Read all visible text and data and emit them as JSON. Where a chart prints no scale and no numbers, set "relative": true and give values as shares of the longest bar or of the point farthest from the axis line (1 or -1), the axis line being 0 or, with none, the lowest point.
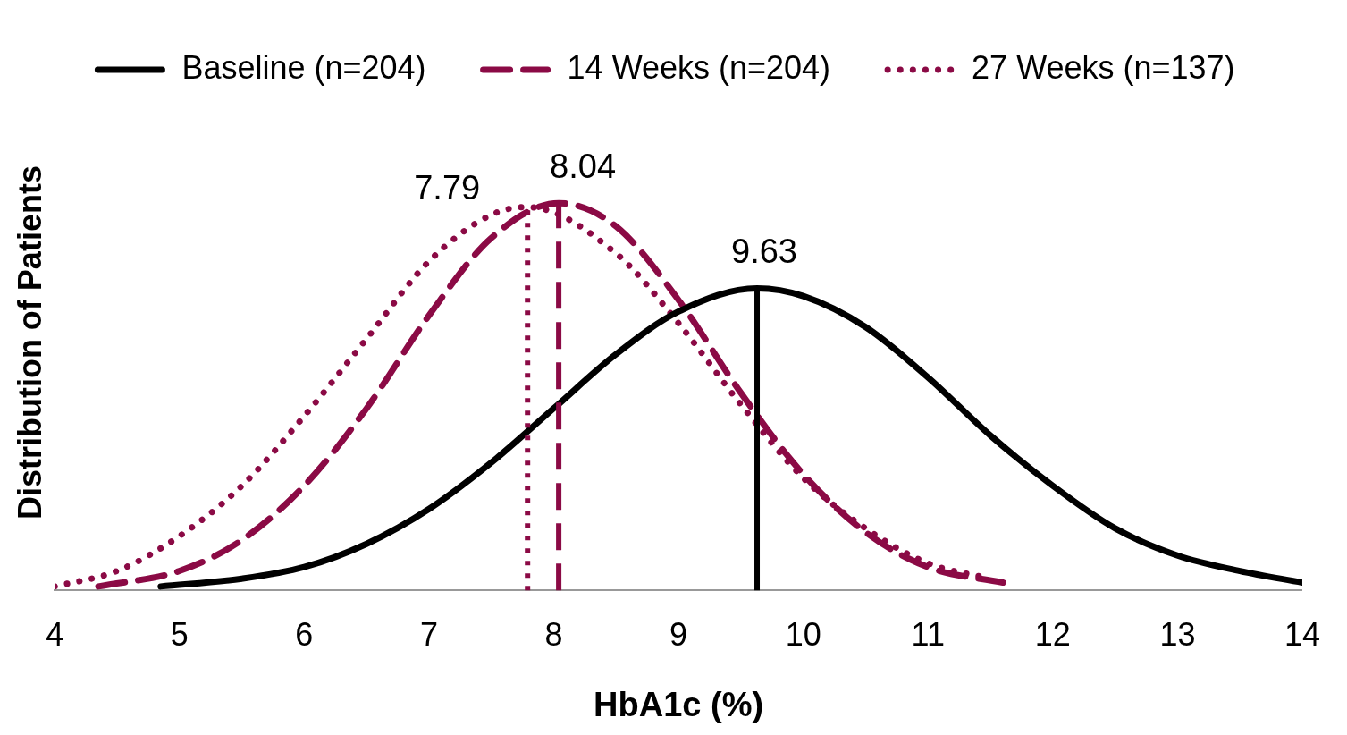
{
  "chart_data": {
    "type": "line",
    "relative": true,
    "xlabel": "HbA1c (%)",
    "ylabel": "Distribution of Patients",
    "xlim": [
      4,
      14
    ],
    "xticks": [
      4,
      5,
      6,
      7,
      8,
      9,
      10,
      11,
      12,
      13,
      14
    ],
    "grid": false,
    "legend": "top",
    "marker": "none",
    "tick_labels": "x",
    "series": [
      {
        "name": "Baseline (n=204)",
        "color": "#000000",
        "line_style": "solid",
        "x": [
          4.85,
          5.5,
          6,
          6.5,
          7,
          7.5,
          8,
          8.5,
          9,
          9.63,
          10,
          10.5,
          11,
          11.5,
          12,
          12.5,
          13,
          13.5,
          14
        ],
        "values": [
          0.01,
          0.03,
          0.06,
          0.12,
          0.21,
          0.33,
          0.47,
          0.61,
          0.72,
          0.78,
          0.76,
          0.68,
          0.55,
          0.4,
          0.27,
          0.16,
          0.09,
          0.05,
          0.02
        ]
      },
      {
        "name": "14 Weeks (n=204)",
        "color": "#8b0a45",
        "line_style": "dashed",
        "x": [
          4.35,
          5,
          5.5,
          6,
          6.5,
          7,
          7.5,
          8.04,
          8.5,
          9,
          9.5,
          10,
          10.5,
          11,
          11.6
        ],
        "values": [
          0.01,
          0.05,
          0.13,
          0.27,
          0.47,
          0.71,
          0.91,
          1,
          0.94,
          0.75,
          0.51,
          0.3,
          0.15,
          0.06,
          0.02
        ]
      },
      {
        "name": "27 Weeks (n=137)",
        "color": "#8b0a45",
        "line_style": "dotted",
        "x": [
          4,
          4.5,
          5,
          5.5,
          6,
          6.5,
          7,
          7.5,
          7.79,
          8.5,
          9,
          9.5,
          10,
          10.5,
          11,
          11.5
        ],
        "values": [
          0.01,
          0.05,
          0.14,
          0.27,
          0.45,
          0.65,
          0.85,
          0.97,
          0.99,
          0.87,
          0.69,
          0.48,
          0.29,
          0.16,
          0.07,
          0.03
        ]
      }
    ],
    "ref_lines": [
      {
        "axis": "x",
        "value": 7.79,
        "label": "7.79",
        "color": "#8b0a45",
        "line_style": "dotted"
      },
      {
        "axis": "x",
        "value": 8.04,
        "label": "8.04",
        "color": "#8b0a45",
        "line_style": "dashed"
      },
      {
        "axis": "x",
        "value": 9.63,
        "label": "9.63",
        "color": "#000000",
        "line_style": "solid"
      }
    ]
  }
}
